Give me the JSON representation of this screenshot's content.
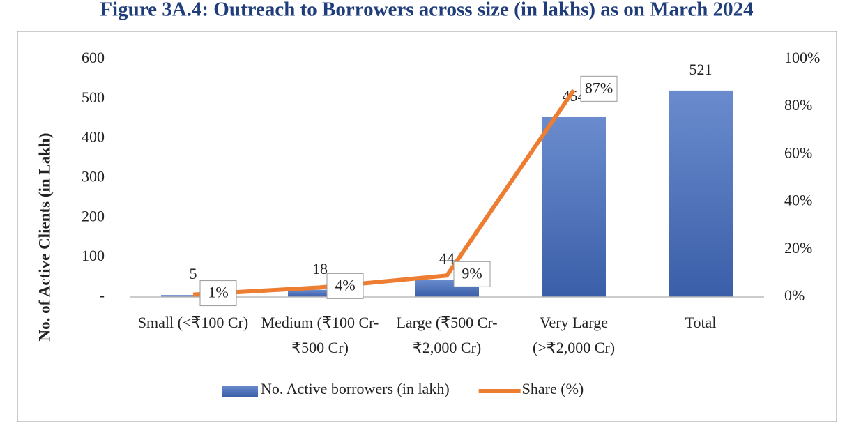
{
  "chart_data": {
    "type": "bar",
    "title": "Figure 3A.4: Outreach to Borrowers across size (in lakhs) as on March 2024",
    "y_label": "No. of Active Clients (in Lakh)",
    "categories": [
      "Small (<₹100 Cr)",
      "Medium (₹100 Cr-₹500 Cr)",
      "Large (₹500 Cr-₹2,000 Cr)",
      "Very Large (>₹2,000 Cr)",
      "Total"
    ],
    "series": [
      {
        "name": "No. Active borrowers (in lakh)",
        "type": "bar",
        "color": "#4a6fba",
        "values": [
          5,
          18,
          44,
          454,
          521
        ]
      },
      {
        "name": "Share (%)",
        "type": "line",
        "axis": "y2",
        "color": "#ed7d31",
        "values": [
          1,
          4,
          9,
          87,
          null
        ],
        "value_labels": [
          "1%",
          "4%",
          "9%",
          "87%",
          null
        ]
      }
    ],
    "ylim": [
      0,
      600
    ],
    "yticks": [
      {
        "value": 0,
        "label": "-"
      },
      100,
      200,
      300,
      400,
      500,
      600
    ],
    "y2lim": [
      0,
      100
    ],
    "y2ticks": [
      {
        "value": 0,
        "label": "0%"
      },
      {
        "value": 20,
        "label": "20%"
      },
      {
        "value": 40,
        "label": "40%"
      },
      {
        "value": 60,
        "label": "60%"
      },
      {
        "value": 80,
        "label": "80%"
      },
      {
        "value": 100,
        "label": "100%"
      }
    ],
    "grid": false,
    "legend": "bottom"
  }
}
